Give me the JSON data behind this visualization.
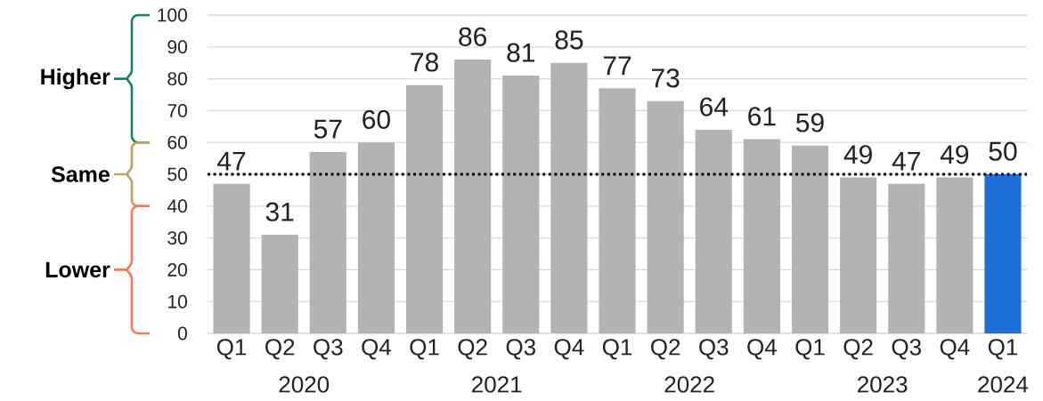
{
  "chart_data": {
    "type": "bar",
    "categories": [
      "Q1",
      "Q2",
      "Q3",
      "Q4",
      "Q1",
      "Q2",
      "Q3",
      "Q4",
      "Q1",
      "Q2",
      "Q3",
      "Q4",
      "Q1",
      "Q2",
      "Q3",
      "Q4",
      "Q1"
    ],
    "values": [
      47,
      31,
      57,
      60,
      78,
      86,
      81,
      85,
      77,
      73,
      64,
      61,
      59,
      49,
      47,
      49,
      50
    ],
    "colors": [
      "#b2b3b5",
      "#b2b3b5",
      "#b2b3b5",
      "#b2b3b5",
      "#b2b3b5",
      "#b2b3b5",
      "#b2b3b5",
      "#b2b3b5",
      "#b2b3b5",
      "#b2b3b5",
      "#b2b3b5",
      "#b2b3b5",
      "#b2b3b5",
      "#b2b3b5",
      "#b2b3b5",
      "#b2b3b5",
      "#1f6fd8"
    ],
    "ylim": [
      0,
      100
    ],
    "yticks": [
      0,
      10,
      20,
      30,
      40,
      50,
      60,
      70,
      80,
      90,
      100
    ],
    "grid": "y",
    "data_labels": true,
    "ref_lines": [
      {
        "axis": "y",
        "value": 50,
        "color": "#000000",
        "line_style": "dotted"
      }
    ],
    "annotations": [
      "2020",
      "2021",
      "2022",
      "2023",
      "2024",
      "Higher",
      "Same",
      "Lower"
    ]
  }
}
